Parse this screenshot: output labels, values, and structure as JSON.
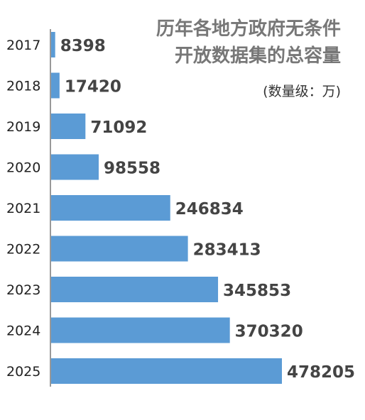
{
  "chart_data": {
    "type": "bar",
    "orientation": "horizontal",
    "title_lines": [
      "历年各地方政府无条件",
      "开放数据集的总容量"
    ],
    "unit": "(数量级：万)",
    "categories": [
      "2017",
      "2018",
      "2019",
      "2020",
      "2021",
      "2022",
      "2023",
      "2024",
      "2025"
    ],
    "values": [
      8398,
      17420,
      71092,
      98558,
      246834,
      283413,
      345853,
      370320,
      478205
    ],
    "value_labels": [
      "8398",
      "17420",
      "71092",
      "98558",
      "246834",
      "283413",
      "345853",
      "370320",
      "478205"
    ],
    "bar_color": "#5b9bd5",
    "value_label_color": "#444444",
    "category_label_color": "#222222",
    "axis_color": "#333333",
    "legend": "none",
    "grid": false
  }
}
